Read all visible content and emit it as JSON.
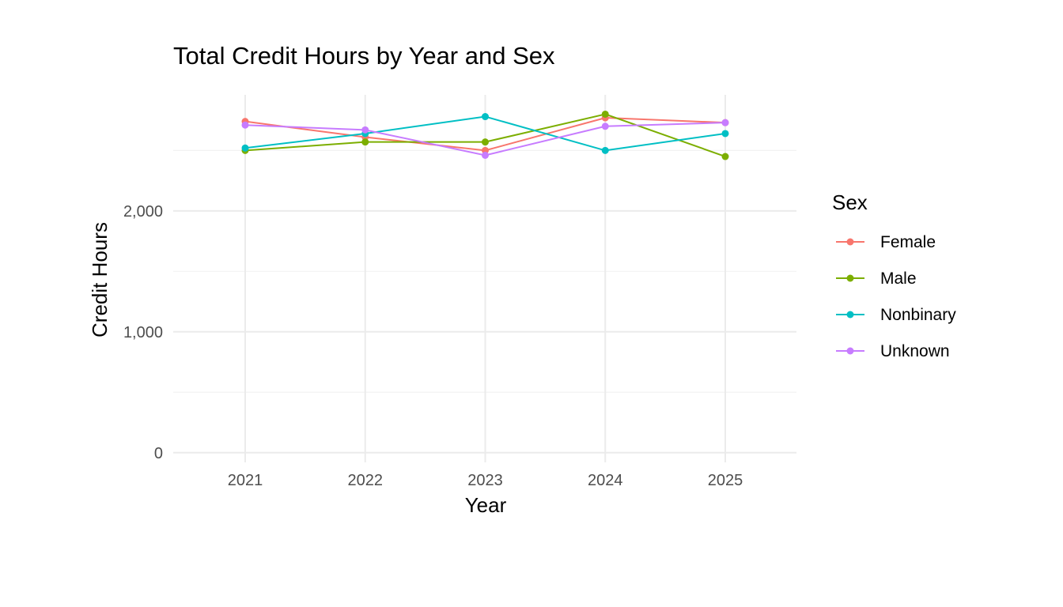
{
  "chart_data": {
    "type": "line",
    "title": "Total Credit Hours by Year and Sex",
    "xlabel": "Year",
    "ylabel": "Credit Hours",
    "categories": [
      "2021",
      "2022",
      "2023",
      "2024",
      "2025"
    ],
    "y_ticks": [
      0,
      1000,
      2000
    ],
    "y_tick_labels": [
      "0",
      "1,000",
      "2,000"
    ],
    "ylim": [
      -80,
      2960
    ],
    "grid": true,
    "legend_title": "Sex",
    "legend_position": "right",
    "series": [
      {
        "name": "Female",
        "color": "#F8766D",
        "values": [
          2740,
          2610,
          2500,
          2770,
          2730
        ]
      },
      {
        "name": "Male",
        "color": "#7CAE00",
        "values": [
          2500,
          2570,
          2570,
          2800,
          2450
        ]
      },
      {
        "name": "Nonbinary",
        "color": "#00BFC4",
        "values": [
          2520,
          2640,
          2780,
          2500,
          2640
        ]
      },
      {
        "name": "Unknown",
        "color": "#C77CFF",
        "values": [
          2710,
          2670,
          2460,
          2700,
          2730
        ]
      }
    ]
  }
}
